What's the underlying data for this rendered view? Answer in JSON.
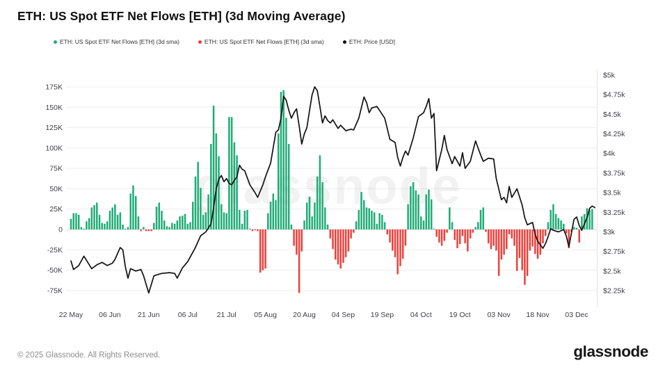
{
  "header": {
    "title": "ETH: US Spot ETF Net Flows [ETH] (3d Moving Average)"
  },
  "legend": {
    "items": [
      {
        "id": "netflow-positive",
        "label": "ETH: US Spot ETF Net Flows [ETH] (3d sma)",
        "color": "#1fab76"
      },
      {
        "id": "netflow-negative",
        "label": "ETH: US Spot ETF Net Flows [ETH] (3d sma)",
        "color": "#ee3f3a"
      },
      {
        "id": "price",
        "label": "ETH: Price [USD]",
        "color": "#111111"
      }
    ]
  },
  "watermark": "glassnode",
  "footer": {
    "copyright": "© 2025 Glassnode. All Rights Reserved.",
    "brand": "glassnode"
  },
  "chart_data": {
    "type": "bar+line",
    "title": "ETH: US Spot ETF Net Flows [ETH] (3d Moving Average)",
    "grid": true,
    "legend_position": "top-left",
    "x_axis": {
      "tick_labels": [
        "22 May",
        "06 Jun",
        "21 Jun",
        "06 Jul",
        "21 Jul",
        "05 Aug",
        "20 Aug",
        "04 Sep",
        "19 Sep",
        "04 Oct",
        "19 Oct",
        "03 Nov",
        "18 Nov",
        "03 Dec"
      ],
      "tick_days": [
        0,
        15,
        30,
        45,
        60,
        75,
        90,
        105,
        120,
        135,
        150,
        165,
        180,
        195
      ]
    },
    "left_axis": {
      "title": "Net Flows (thousand ETH)",
      "labels": [
        "175K",
        "150K",
        "125K",
        "100K",
        "75K",
        "50K",
        "25K",
        "0",
        "-25K",
        "-50K",
        "-75K"
      ],
      "values": [
        175,
        150,
        125,
        100,
        75,
        50,
        25,
        0,
        -25,
        -50,
        -75
      ]
    },
    "right_axis": {
      "title": "ETH Price (USD)",
      "labels": [
        "$5k",
        "$4.75k",
        "$4.5k",
        "$4.25k",
        "$4k",
        "$3.75k",
        "$3.5k",
        "$3.25k",
        "$3k",
        "$2.75k",
        "$2.5k",
        "$2.25k"
      ],
      "values": [
        5,
        4.75,
        4.5,
        4.25,
        4,
        3.75,
        3.5,
        3.25,
        3,
        2.75,
        2.5,
        2.25
      ]
    },
    "flows_series": {
      "name": "ETH: US Spot ETF Net Flows [ETH] (3d sma)",
      "unit": "thousand ETH per day",
      "start_label": "22 May",
      "values_thousands": [
        13,
        20,
        20,
        18,
        3,
        1,
        10,
        14,
        27,
        30,
        33,
        18,
        8,
        7,
        10,
        23,
        27,
        31,
        18,
        21,
        6,
        1,
        3,
        44,
        54,
        41,
        16,
        -2,
        3,
        -2,
        -2,
        -2,
        8,
        28,
        33,
        23,
        11,
        4,
        3,
        8,
        7,
        11,
        16,
        17,
        19,
        7,
        9,
        34,
        65,
        83,
        51,
        18,
        21,
        43,
        105,
        152,
        118,
        90,
        31,
        21,
        20,
        138,
        138,
        107,
        91,
        24,
        7,
        23,
        24,
        1,
        -2,
        -1,
        -2,
        -53,
        -50,
        -48,
        20,
        34,
        44,
        36,
        118,
        169,
        171,
        137,
        105,
        6,
        -20,
        -31,
        -78,
        -27,
        11,
        33,
        40,
        16,
        33,
        65,
        91,
        58,
        27,
        6,
        -11,
        -24,
        -37,
        -43,
        -48,
        -41,
        -34,
        -27,
        -11,
        -4,
        10,
        24,
        46,
        36,
        27,
        26,
        23,
        21,
        7,
        20,
        18,
        9,
        -6,
        -16,
        -26,
        -34,
        -55,
        -45,
        -36,
        -20,
        31,
        53,
        58,
        48,
        43,
        16,
        11,
        43,
        49,
        37,
        1,
        -9,
        -16,
        -20,
        -14,
        -4,
        27,
        9,
        -13,
        -23,
        -18,
        -8,
        -17,
        -27,
        -11,
        -4,
        3,
        9,
        24,
        27,
        -3,
        -17,
        -24,
        -20,
        -26,
        -57,
        -37,
        -31,
        -24,
        -6,
        -11,
        -20,
        -51,
        -35,
        -50,
        -68,
        -57,
        -26,
        -21,
        -30,
        -36,
        -31,
        -17,
        -8,
        9,
        24,
        31,
        19,
        14,
        11,
        7,
        -5,
        -23,
        -3,
        3,
        2,
        -16,
        16,
        19,
        26,
        24,
        25
      ]
    },
    "price_series": {
      "name": "ETH: Price [USD]",
      "unit": "USD (thousands)",
      "points_day_value": [
        [
          0,
          2.63
        ],
        [
          1,
          2.52
        ],
        [
          3,
          2.57
        ],
        [
          5,
          2.69
        ],
        [
          8,
          2.53
        ],
        [
          10,
          2.58
        ],
        [
          12,
          2.61
        ],
        [
          14,
          2.57
        ],
        [
          16,
          2.6
        ],
        [
          17,
          2.65
        ],
        [
          19,
          2.8
        ],
        [
          20,
          2.77
        ],
        [
          21,
          2.55
        ],
        [
          22,
          2.41
        ],
        [
          23,
          2.53
        ],
        [
          25,
          2.5
        ],
        [
          27,
          2.52
        ],
        [
          28,
          2.44
        ],
        [
          30,
          2.22
        ],
        [
          32,
          2.44
        ],
        [
          35,
          2.47
        ],
        [
          38,
          2.48
        ],
        [
          40,
          2.47
        ],
        [
          41,
          2.41
        ],
        [
          43,
          2.54
        ],
        [
          45,
          2.62
        ],
        [
          47,
          2.74
        ],
        [
          48,
          2.8
        ],
        [
          50,
          2.95
        ],
        [
          52,
          3.0
        ],
        [
          54,
          3.1
        ],
        [
          55,
          3.3
        ],
        [
          56,
          3.55
        ],
        [
          57,
          3.67
        ],
        [
          58,
          3.72
        ],
        [
          59,
          3.64
        ],
        [
          60,
          3.68
        ],
        [
          61,
          3.62
        ],
        [
          62,
          3.6
        ],
        [
          63,
          3.66
        ],
        [
          64,
          3.7
        ],
        [
          65,
          3.85
        ],
        [
          66,
          3.8
        ],
        [
          67,
          3.78
        ],
        [
          69,
          3.6
        ],
        [
          71,
          3.5
        ],
        [
          72,
          3.44
        ],
        [
          74,
          3.6
        ],
        [
          75,
          3.7
        ],
        [
          77,
          3.88
        ],
        [
          79,
          4.27
        ],
        [
          80,
          4.3
        ],
        [
          81,
          4.45
        ],
        [
          82,
          4.73
        ],
        [
          83,
          4.68
        ],
        [
          84,
          4.55
        ],
        [
          85,
          4.45
        ],
        [
          86,
          4.52
        ],
        [
          87,
          4.57
        ],
        [
          88,
          4.35
        ],
        [
          89,
          4.12
        ],
        [
          90,
          4.25
        ],
        [
          91,
          4.33
        ],
        [
          92,
          4.55
        ],
        [
          93,
          4.75
        ],
        [
          94,
          4.85
        ],
        [
          95,
          4.8
        ],
        [
          96,
          4.6
        ],
        [
          97,
          4.39
        ],
        [
          98,
          4.48
        ],
        [
          99,
          4.42
        ],
        [
          100,
          4.39
        ],
        [
          101,
          4.43
        ],
        [
          103,
          4.32
        ],
        [
          104,
          4.36
        ],
        [
          106,
          4.29
        ],
        [
          108,
          4.31
        ],
        [
          109,
          4.3
        ],
        [
          111,
          4.45
        ],
        [
          113,
          4.72
        ],
        [
          114,
          4.65
        ],
        [
          115,
          4.52
        ],
        [
          116,
          4.58
        ],
        [
          118,
          4.6
        ],
        [
          119,
          4.55
        ],
        [
          121,
          4.45
        ],
        [
          123,
          4.18
        ],
        [
          125,
          4.14
        ],
        [
          126,
          3.95
        ],
        [
          127,
          3.84
        ],
        [
          128,
          3.95
        ],
        [
          129,
          4.03
        ],
        [
          130,
          3.98
        ],
        [
          132,
          4.2
        ],
        [
          134,
          4.47
        ],
        [
          136,
          4.52
        ],
        [
          137,
          4.6
        ],
        [
          138,
          4.7
        ],
        [
          139,
          4.45
        ],
        [
          140,
          4.51
        ],
        [
          141,
          3.78
        ],
        [
          143,
          4.05
        ],
        [
          144,
          4.23
        ],
        [
          145,
          4.05
        ],
        [
          147,
          3.87
        ],
        [
          148,
          3.96
        ],
        [
          150,
          3.84
        ],
        [
          151,
          4.01
        ],
        [
          152,
          3.81
        ],
        [
          154,
          3.9
        ],
        [
          156,
          4.16
        ],
        [
          158,
          3.98
        ],
        [
          159,
          3.9
        ],
        [
          161,
          3.94
        ],
        [
          163,
          3.93
        ],
        [
          164,
          3.68
        ],
        [
          166,
          3.41
        ],
        [
          167,
          3.44
        ],
        [
          168,
          3.37
        ],
        [
          169,
          3.58
        ],
        [
          170,
          3.44
        ],
        [
          172,
          3.55
        ],
        [
          174,
          3.34
        ],
        [
          175,
          3.18
        ],
        [
          176,
          3.09
        ],
        [
          178,
          3.12
        ],
        [
          179,
          2.97
        ],
        [
          180,
          2.88
        ],
        [
          182,
          2.79
        ],
        [
          183,
          2.85
        ],
        [
          184,
          2.94
        ],
        [
          185,
          3.04
        ],
        [
          186,
          3.02
        ],
        [
          188,
          3.0
        ],
        [
          190,
          3.03
        ],
        [
          191,
          2.95
        ],
        [
          192,
          2.81
        ],
        [
          194,
          3.16
        ],
        [
          195,
          3.19
        ],
        [
          196,
          3.08
        ],
        [
          197,
          3.02
        ],
        [
          198,
          3.1
        ],
        [
          199,
          3.18
        ],
        [
          200,
          3.3
        ],
        [
          201,
          3.33
        ],
        [
          202,
          3.31
        ]
      ]
    },
    "colors": {
      "inflow": "#1fab76",
      "outflow": "#ee3f3a",
      "price": "#111111",
      "grid": "#ededed",
      "zero_line": "#d9d9d9",
      "axis_text": "#3f3f46",
      "right_border": "#e3e3e3"
    }
  }
}
